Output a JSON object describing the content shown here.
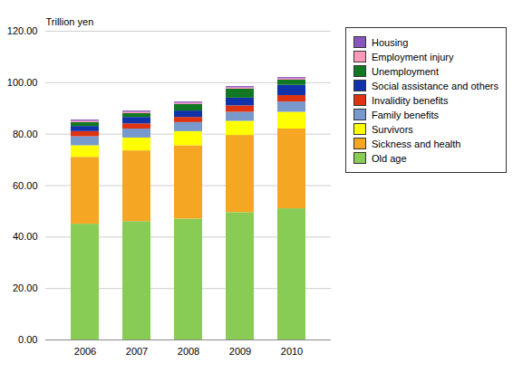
{
  "chart_data": {
    "type": "bar",
    "stacked": true,
    "ylabel": "Trillion yen",
    "categories": [
      "2006",
      "2007",
      "2008",
      "2009",
      "2010"
    ],
    "series": [
      {
        "name": "Old age",
        "color": "#88cc55",
        "values": [
          45.0,
          46.0,
          47.0,
          49.5,
          51.0
        ]
      },
      {
        "name": "Sickness and health",
        "color": "#f5a623",
        "values": [
          26.0,
          27.5,
          28.5,
          30.0,
          31.0
        ]
      },
      {
        "name": "Survivors",
        "color": "#ffff00",
        "values": [
          4.5,
          5.0,
          5.5,
          5.5,
          6.5
        ]
      },
      {
        "name": "Family benefits",
        "color": "#7799cc",
        "values": [
          3.5,
          3.5,
          3.5,
          3.5,
          4.0
        ]
      },
      {
        "name": "Invalidity benefits",
        "color": "#dd3311",
        "values": [
          2.0,
          2.0,
          2.0,
          2.5,
          2.5
        ]
      },
      {
        "name": "Social assistance and others",
        "color": "#1133aa",
        "values": [
          2.0,
          2.5,
          2.5,
          3.0,
          4.0
        ]
      },
      {
        "name": "Unemployment",
        "color": "#117722",
        "values": [
          1.5,
          1.5,
          2.5,
          3.5,
          2.0
        ]
      },
      {
        "name": "Employment injury",
        "color": "#ff99bb",
        "values": [
          0.5,
          0.5,
          0.5,
          0.5,
          0.5
        ]
      },
      {
        "name": "Housing",
        "color": "#8855bb",
        "values": [
          0.5,
          0.5,
          0.5,
          0.5,
          0.5
        ]
      }
    ],
    "ylim": [
      0,
      120
    ],
    "yticks": [
      {
        "value": 0,
        "label": "0.00"
      },
      {
        "value": 20,
        "label": "20.00"
      },
      {
        "value": 40,
        "label": "40.00"
      },
      {
        "value": 60,
        "label": "60.00"
      },
      {
        "value": 80,
        "label": "80.00"
      },
      {
        "value": 100,
        "label": "100.00"
      },
      {
        "value": 120,
        "label": "120.00"
      }
    ],
    "grid": true,
    "legend": "right"
  }
}
